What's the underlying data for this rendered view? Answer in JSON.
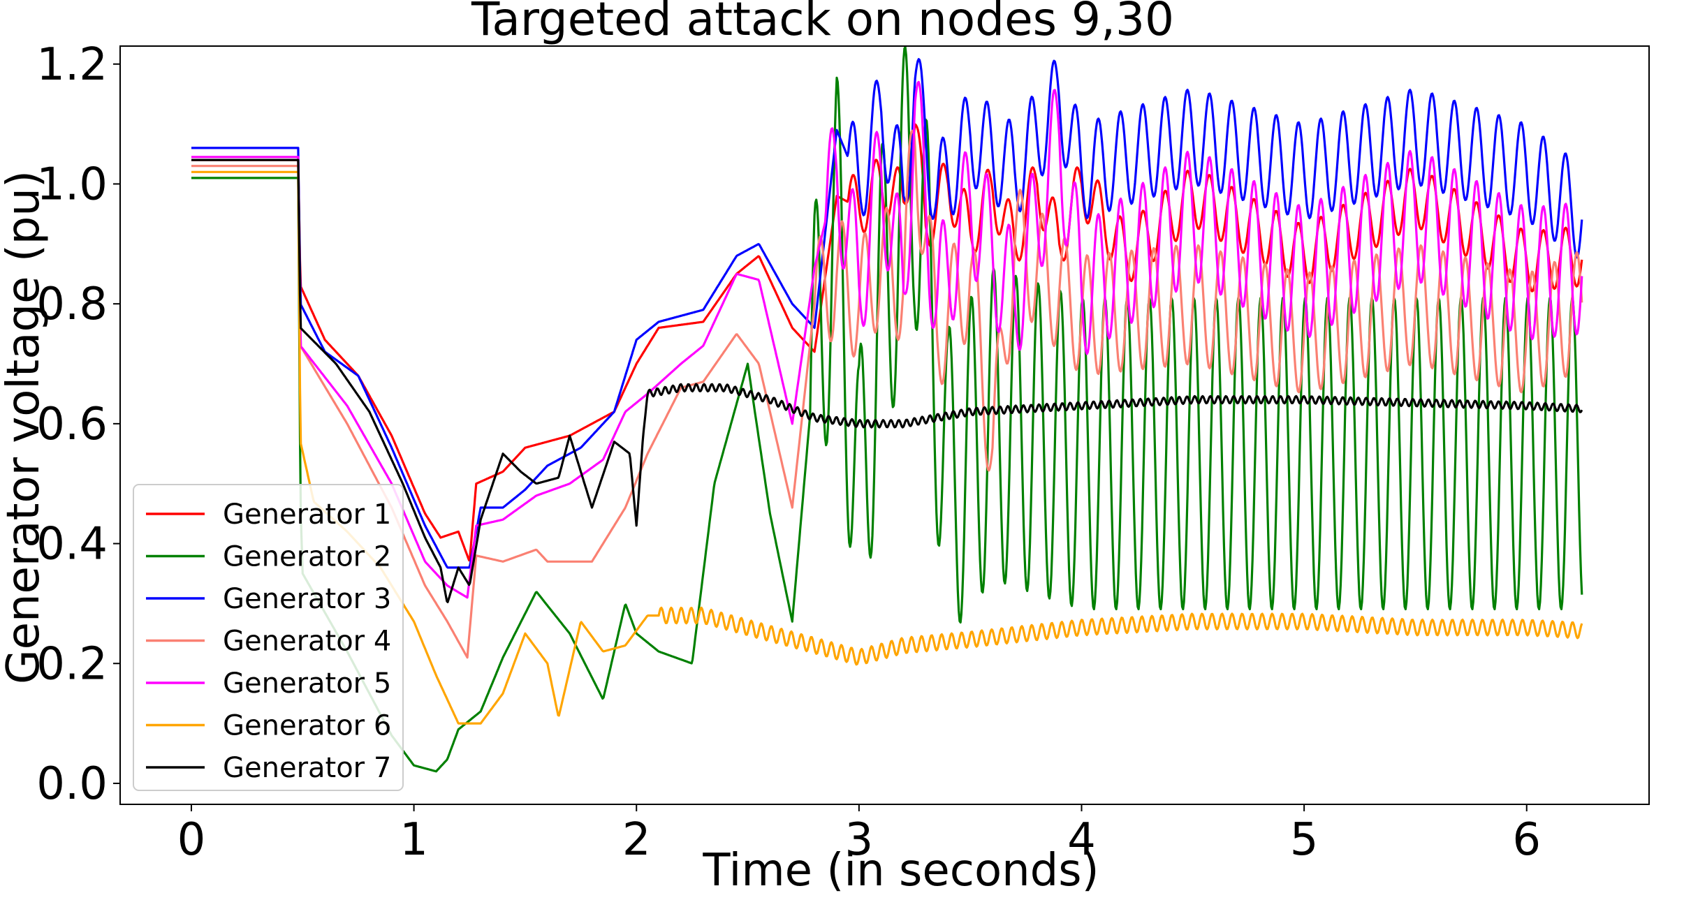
{
  "chart_data": {
    "type": "line",
    "title": "Targeted attack on nodes 9,30",
    "xlabel": "Time (in seconds)",
    "ylabel": "Generator voltage (pu)",
    "xlim": [
      -0.32,
      6.55
    ],
    "ylim": [
      -0.035,
      1.23
    ],
    "xticks": [
      0,
      1,
      2,
      3,
      4,
      5,
      6
    ],
    "yticks": [
      0.0,
      0.2,
      0.4,
      0.6,
      0.8,
      1.0,
      1.2
    ],
    "xtick_labels": [
      "0",
      "1",
      "2",
      "3",
      "4",
      "5",
      "6"
    ],
    "ytick_labels": [
      "0.0",
      "0.2",
      "0.4",
      "0.6",
      "0.8",
      "1.0",
      "1.2"
    ],
    "grid": false,
    "legend_position": "lower-left",
    "series": [
      {
        "name": "Generator 1",
        "color": "#ff0000",
        "points": [
          [
            0,
            1.04
          ],
          [
            0.48,
            1.04
          ],
          [
            0.49,
            0.83
          ],
          [
            0.6,
            0.74
          ],
          [
            0.75,
            0.68
          ],
          [
            0.9,
            0.58
          ],
          [
            1.05,
            0.45
          ],
          [
            1.12,
            0.41
          ],
          [
            1.2,
            0.42
          ],
          [
            1.25,
            0.37
          ],
          [
            1.28,
            0.5
          ],
          [
            1.4,
            0.52
          ],
          [
            1.5,
            0.56
          ],
          [
            1.7,
            0.58
          ],
          [
            1.9,
            0.62
          ],
          [
            2.0,
            0.7
          ],
          [
            2.1,
            0.76
          ],
          [
            2.3,
            0.77
          ],
          [
            2.45,
            0.85
          ],
          [
            2.55,
            0.88
          ],
          [
            2.7,
            0.76
          ],
          [
            2.8,
            0.72
          ],
          [
            2.9,
            0.98
          ],
          [
            3.0,
            0.96
          ],
          [
            3.1,
            1.0
          ],
          [
            3.2,
            0.97
          ],
          [
            3.25,
            1.1
          ],
          [
            3.3,
            0.93
          ],
          [
            3.4,
            1.0
          ],
          [
            3.5,
            0.92
          ],
          [
            3.6,
            0.99
          ],
          [
            3.7,
            0.9
          ],
          [
            3.8,
            1.0
          ],
          [
            3.9,
            0.9
          ],
          [
            4.0,
            1.0
          ],
          [
            4.2,
            0.88
          ],
          [
            4.5,
            0.98
          ],
          [
            5.0,
            0.88
          ],
          [
            5.5,
            0.98
          ],
          [
            6.0,
            0.87
          ],
          [
            6.25,
            0.88
          ]
        ],
        "oscillation": {
          "start": 2.95,
          "period": 0.1,
          "amplitude": 0.05
        }
      },
      {
        "name": "Generator 2",
        "color": "#008000",
        "points": [
          [
            0,
            1.01
          ],
          [
            0.48,
            1.01
          ],
          [
            0.49,
            0.47
          ],
          [
            0.5,
            0.35
          ],
          [
            0.7,
            0.22
          ],
          [
            0.9,
            0.08
          ],
          [
            1.0,
            0.03
          ],
          [
            1.1,
            0.02
          ],
          [
            1.15,
            0.04
          ],
          [
            1.2,
            0.09
          ],
          [
            1.3,
            0.12
          ],
          [
            1.4,
            0.21
          ],
          [
            1.55,
            0.32
          ],
          [
            1.7,
            0.25
          ],
          [
            1.85,
            0.14
          ],
          [
            1.95,
            0.3
          ],
          [
            2.0,
            0.25
          ],
          [
            2.1,
            0.22
          ],
          [
            2.25,
            0.2
          ],
          [
            2.35,
            0.5
          ],
          [
            2.5,
            0.7
          ],
          [
            2.6,
            0.45
          ],
          [
            2.7,
            0.27
          ],
          [
            2.8,
            0.7
          ],
          [
            2.9,
            0.93
          ],
          [
            3.0,
            0.45
          ],
          [
            3.1,
            0.8
          ],
          [
            3.25,
            1.04
          ],
          [
            3.4,
            0.5
          ],
          [
            3.6,
            0.6
          ],
          [
            4.0,
            0.55
          ],
          [
            5.0,
            0.55
          ],
          [
            6.25,
            0.55
          ]
        ],
        "oscillation": {
          "start": 2.78,
          "period": 0.1,
          "amplitude": 0.26
        }
      },
      {
        "name": "Generator 3",
        "color": "#0000ff",
        "points": [
          [
            0,
            1.06
          ],
          [
            0.48,
            1.06
          ],
          [
            0.49,
            0.8
          ],
          [
            0.6,
            0.72
          ],
          [
            0.75,
            0.68
          ],
          [
            0.9,
            0.56
          ],
          [
            1.05,
            0.43
          ],
          [
            1.15,
            0.36
          ],
          [
            1.25,
            0.36
          ],
          [
            1.3,
            0.46
          ],
          [
            1.4,
            0.46
          ],
          [
            1.5,
            0.49
          ],
          [
            1.6,
            0.53
          ],
          [
            1.75,
            0.56
          ],
          [
            1.9,
            0.62
          ],
          [
            2.0,
            0.74
          ],
          [
            2.1,
            0.77
          ],
          [
            2.3,
            0.79
          ],
          [
            2.45,
            0.88
          ],
          [
            2.55,
            0.9
          ],
          [
            2.7,
            0.8
          ],
          [
            2.8,
            0.76
          ],
          [
            2.9,
            1.09
          ],
          [
            3.0,
            1.0
          ],
          [
            3.1,
            1.12
          ],
          [
            3.2,
            0.98
          ],
          [
            3.25,
            1.17
          ],
          [
            3.35,
            0.98
          ],
          [
            3.5,
            1.08
          ],
          [
            3.7,
            1.02
          ],
          [
            3.9,
            1.14
          ],
          [
            4.0,
            1.02
          ],
          [
            4.5,
            1.08
          ],
          [
            5.0,
            1.02
          ],
          [
            5.5,
            1.08
          ],
          [
            6.0,
            1.02
          ],
          [
            6.25,
            0.95
          ]
        ],
        "oscillation": {
          "start": 2.95,
          "period": 0.1,
          "amplitude": 0.08
        }
      },
      {
        "name": "Generator 4",
        "color": "#fa8072",
        "points": [
          [
            0,
            1.03
          ],
          [
            0.48,
            1.03
          ],
          [
            0.49,
            0.73
          ],
          [
            0.7,
            0.6
          ],
          [
            0.9,
            0.46
          ],
          [
            1.05,
            0.33
          ],
          [
            1.15,
            0.27
          ],
          [
            1.24,
            0.21
          ],
          [
            1.28,
            0.38
          ],
          [
            1.4,
            0.37
          ],
          [
            1.55,
            0.39
          ],
          [
            1.6,
            0.37
          ],
          [
            1.8,
            0.37
          ],
          [
            1.95,
            0.46
          ],
          [
            2.05,
            0.55
          ],
          [
            2.2,
            0.66
          ],
          [
            2.3,
            0.67
          ],
          [
            2.45,
            0.75
          ],
          [
            2.55,
            0.7
          ],
          [
            2.7,
            0.46
          ],
          [
            2.8,
            0.8
          ],
          [
            2.9,
            0.85
          ],
          [
            3.0,
            0.8
          ],
          [
            3.1,
            0.87
          ],
          [
            3.2,
            0.83
          ],
          [
            3.25,
            1.08
          ],
          [
            3.35,
            0.75
          ],
          [
            3.5,
            0.85
          ],
          [
            3.6,
            0.56
          ],
          [
            3.7,
            0.9
          ],
          [
            4.0,
            0.78
          ],
          [
            4.5,
            0.8
          ],
          [
            5.0,
            0.75
          ],
          [
            5.5,
            0.8
          ],
          [
            6.0,
            0.75
          ],
          [
            6.25,
            0.79
          ]
        ],
        "oscillation": {
          "start": 2.8,
          "period": 0.1,
          "amplitude": 0.1
        }
      },
      {
        "name": "Generator 5",
        "color": "#ff00ff",
        "points": [
          [
            0,
            1.045
          ],
          [
            0.48,
            1.045
          ],
          [
            0.49,
            0.73
          ],
          [
            0.7,
            0.63
          ],
          [
            0.9,
            0.5
          ],
          [
            1.05,
            0.37
          ],
          [
            1.15,
            0.33
          ],
          [
            1.24,
            0.31
          ],
          [
            1.28,
            0.43
          ],
          [
            1.4,
            0.44
          ],
          [
            1.55,
            0.48
          ],
          [
            1.7,
            0.5
          ],
          [
            1.85,
            0.54
          ],
          [
            1.95,
            0.62
          ],
          [
            2.05,
            0.65
          ],
          [
            2.2,
            0.7
          ],
          [
            2.3,
            0.73
          ],
          [
            2.45,
            0.85
          ],
          [
            2.55,
            0.84
          ],
          [
            2.7,
            0.6
          ],
          [
            2.8,
            0.86
          ],
          [
            2.9,
            1.02
          ],
          [
            3.0,
            0.83
          ],
          [
            3.1,
            1.02
          ],
          [
            3.2,
            0.82
          ],
          [
            3.25,
            1.13
          ],
          [
            3.35,
            0.8
          ],
          [
            3.5,
            0.97
          ],
          [
            3.7,
            0.8
          ],
          [
            3.9,
            1.08
          ],
          [
            4.0,
            0.82
          ],
          [
            4.5,
            0.95
          ],
          [
            5.0,
            0.85
          ],
          [
            5.5,
            0.95
          ],
          [
            6.0,
            0.85
          ],
          [
            6.25,
            0.86
          ]
        ],
        "oscillation": {
          "start": 2.85,
          "period": 0.1,
          "amplitude": 0.11
        }
      },
      {
        "name": "Generator 6",
        "color": "#ffa500",
        "points": [
          [
            0,
            1.02
          ],
          [
            0.48,
            1.02
          ],
          [
            0.49,
            0.57
          ],
          [
            0.55,
            0.47
          ],
          [
            0.7,
            0.42
          ],
          [
            0.85,
            0.36
          ],
          [
            1.0,
            0.27
          ],
          [
            1.1,
            0.18
          ],
          [
            1.2,
            0.1
          ],
          [
            1.3,
            0.1
          ],
          [
            1.4,
            0.15
          ],
          [
            1.5,
            0.25
          ],
          [
            1.6,
            0.2
          ],
          [
            1.65,
            0.11
          ],
          [
            1.75,
            0.27
          ],
          [
            1.85,
            0.22
          ],
          [
            1.95,
            0.23
          ],
          [
            2.05,
            0.28
          ],
          [
            2.3,
            0.28
          ],
          [
            2.5,
            0.26
          ],
          [
            2.7,
            0.24
          ],
          [
            2.9,
            0.22
          ],
          [
            3.0,
            0.21
          ],
          [
            3.2,
            0.23
          ],
          [
            3.5,
            0.24
          ],
          [
            4.0,
            0.26
          ],
          [
            4.5,
            0.27
          ],
          [
            5.0,
            0.27
          ],
          [
            5.5,
            0.26
          ],
          [
            6.0,
            0.26
          ],
          [
            6.25,
            0.255
          ]
        ],
        "oscillation": {
          "start": 2.1,
          "period": 0.045,
          "amplitude": 0.013
        }
      },
      {
        "name": "Generator 7",
        "color": "#000000",
        "points": [
          [
            0,
            1.04
          ],
          [
            0.48,
            1.04
          ],
          [
            0.49,
            0.76
          ],
          [
            0.65,
            0.7
          ],
          [
            0.8,
            0.62
          ],
          [
            0.95,
            0.5
          ],
          [
            1.05,
            0.41
          ],
          [
            1.12,
            0.36
          ],
          [
            1.15,
            0.3
          ],
          [
            1.2,
            0.36
          ],
          [
            1.25,
            0.33
          ],
          [
            1.3,
            0.44
          ],
          [
            1.4,
            0.55
          ],
          [
            1.48,
            0.52
          ],
          [
            1.55,
            0.5
          ],
          [
            1.65,
            0.51
          ],
          [
            1.7,
            0.58
          ],
          [
            1.75,
            0.52
          ],
          [
            1.8,
            0.46
          ],
          [
            1.9,
            0.57
          ],
          [
            1.97,
            0.55
          ],
          [
            2.0,
            0.43
          ],
          [
            2.03,
            0.58
          ],
          [
            2.05,
            0.65
          ],
          [
            2.2,
            0.66
          ],
          [
            2.4,
            0.66
          ],
          [
            2.6,
            0.64
          ],
          [
            2.8,
            0.61
          ],
          [
            3.0,
            0.6
          ],
          [
            3.2,
            0.6
          ],
          [
            3.5,
            0.62
          ],
          [
            4.0,
            0.63
          ],
          [
            4.5,
            0.64
          ],
          [
            5.0,
            0.64
          ],
          [
            5.5,
            0.635
          ],
          [
            6.0,
            0.63
          ],
          [
            6.25,
            0.625
          ]
        ],
        "oscillation": {
          "start": 2.05,
          "period": 0.035,
          "amplitude": 0.006
        }
      }
    ]
  }
}
